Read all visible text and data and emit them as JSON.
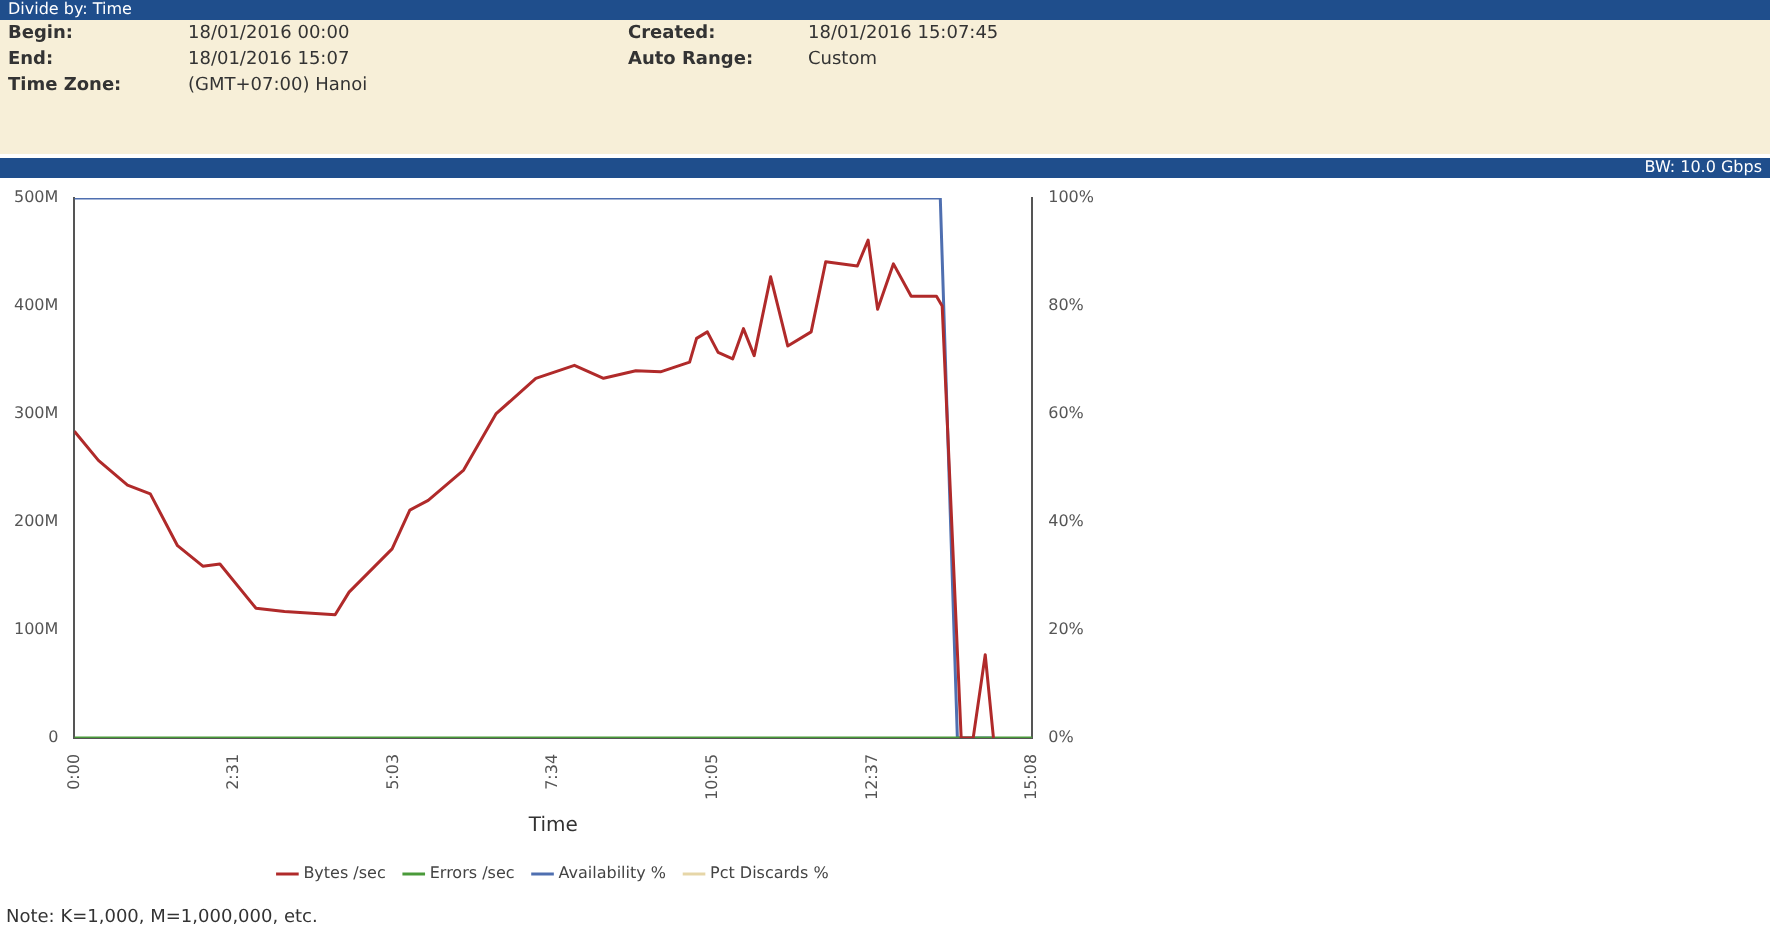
{
  "chart_data": {
    "type": "line",
    "xlabel": "Time",
    "annotations": [
      "Divide by: Time",
      "Begin:",
      "18/01/2016 00:00",
      "Created:",
      "18/01/2016 15:07:45",
      "End:",
      "18/01/2016 15:07",
      "Auto Range:",
      "Custom",
      "Time Zone:",
      "(GMT+07:00) Hanoi",
      "BW: 10.0 Gbps",
      "Note: K=1,000, M=1,000,000, etc."
    ],
    "series": [
      {
        "name": "Bytes /sec",
        "color": "#b02a2a",
        "x": [
          0,
          0.38,
          0.84,
          1.2,
          1.63,
          2.03,
          2.3,
          2.87,
          3.32,
          4.12,
          4.34,
          5.02,
          5.3,
          5.59,
          6.15,
          6.66,
          7.29,
          7.9,
          8.36,
          8.87,
          9.26,
          9.72,
          9.83,
          10.0,
          10.17,
          10.4,
          10.57,
          10.74,
          11.0,
          11.27,
          11.64,
          11.87,
          12.37,
          12.54,
          12.69,
          12.94,
          13.22,
          13.62,
          13.71,
          14.01,
          14.2,
          14.39,
          14.52
        ],
        "values": [
          284,
          257,
          234,
          226,
          178,
          159,
          161,
          120,
          117,
          114,
          135,
          175,
          211,
          220,
          248,
          300,
          333,
          345,
          333,
          340,
          339,
          348,
          370,
          376,
          357,
          351,
          379,
          354,
          427,
          363,
          376,
          441,
          437,
          461,
          397,
          439,
          409,
          409,
          400,
          0,
          0,
          77,
          0
        ]
      },
      {
        "name": "Errors /sec",
        "color": "#4a9a3a",
        "x": [
          0,
          15.133
        ],
        "values": [
          0,
          0
        ]
      },
      {
        "name": "Availability %",
        "color": "#4f6fb0",
        "axis": "y2",
        "x": [
          0,
          13.68,
          13.95,
          14.52
        ],
        "values": [
          100,
          100,
          0,
          0
        ]
      },
      {
        "name": "Pct Discards %",
        "color": "#e6d6a8",
        "axis": "y2"
      }
    ],
    "xlim": [
      0,
      15.133
    ],
    "xticks": [
      {
        "value": 0,
        "label": "0:00"
      },
      {
        "value": 2.517,
        "label": "2:31"
      },
      {
        "value": 5.05,
        "label": "5:03"
      },
      {
        "value": 7.567,
        "label": "7:34"
      },
      {
        "value": 10.083,
        "label": "10:05"
      },
      {
        "value": 12.617,
        "label": "12:37"
      },
      {
        "value": 15.133,
        "label": "15:08"
      }
    ],
    "ylim": [
      0,
      500
    ],
    "yticks": [
      {
        "value": 0,
        "label": "0"
      },
      {
        "value": 100,
        "label": "100M"
      },
      {
        "value": 200,
        "label": "200M"
      },
      {
        "value": 300,
        "label": "300M"
      },
      {
        "value": 400,
        "label": "400M"
      },
      {
        "value": 500,
        "label": "500M"
      }
    ],
    "y2lim": [
      0,
      100
    ],
    "y2ticks": [
      {
        "value": 0,
        "label": "0%"
      },
      {
        "value": 20,
        "label": "20%"
      },
      {
        "value": 40,
        "label": "40%"
      },
      {
        "value": 60,
        "label": "60%"
      },
      {
        "value": 80,
        "label": "80%"
      },
      {
        "value": 100,
        "label": "100%"
      }
    ],
    "grid": false,
    "legend": "bottom",
    "marker": "none",
    "line_style": "solid"
  }
}
